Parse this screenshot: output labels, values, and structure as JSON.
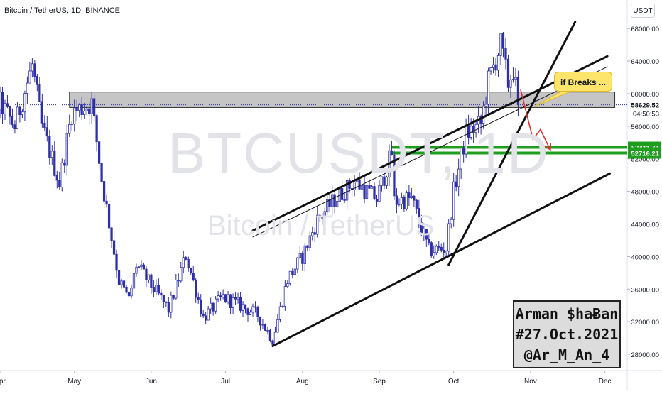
{
  "header": {
    "title": "Bitcoin / TetherUS, 1D, BINANCE",
    "currency": "USDT"
  },
  "watermark": {
    "symbol": "BTCUSDT, 1D",
    "description": "Bitcoin / TetherUS"
  },
  "colors": {
    "candle_up": "#ffffff",
    "candle_down": "#2f2fa8",
    "level_green": "#1f9d1f",
    "arrow_red": "#e0302a",
    "zone_fill": "#9e9e9e",
    "callout_fill": "#fce56a"
  },
  "signature": {
    "line1": "Arman $haɃan",
    "line2": "#27.Oct.2021",
    "line3": "@Ar_M_An_4"
  },
  "callout": {
    "text": "if Breaks ..."
  },
  "chart_data": {
    "type": "candlestick",
    "symbol": "BTCUSDT",
    "timeframe": "1D",
    "exchange": "BINANCE",
    "x_range": [
      "2021-04-01",
      "2021-12-10"
    ],
    "ylim": [
      26000,
      71500
    ],
    "y_ticks": [
      28000,
      32000,
      36000,
      40000,
      44000,
      48000,
      52000,
      56000,
      60000,
      64000,
      68000
    ],
    "y_tick_labels": [
      "28000.00",
      "32000.00",
      "36000.00",
      "40000.00",
      "44000.00",
      "48000.00",
      "52000.00",
      "56000.00",
      "60000.00",
      "64000.00",
      "68000.00"
    ],
    "x_ticks": [
      {
        "label": "Apr",
        "date": "2021-04-01"
      },
      {
        "label": "May",
        "date": "2021-05-01"
      },
      {
        "label": "Jun",
        "date": "2021-06-01"
      },
      {
        "label": "Jul",
        "date": "2021-07-01"
      },
      {
        "label": "Aug",
        "date": "2021-08-01"
      },
      {
        "label": "Sep",
        "date": "2021-09-01"
      },
      {
        "label": "Oct",
        "date": "2021-10-01"
      },
      {
        "label": "Nov",
        "date": "2021-11-01"
      },
      {
        "label": "Dec",
        "date": "2021-12-01"
      }
    ],
    "price_anchors": [
      {
        "date": "2021-04-01",
        "close": 58800
      },
      {
        "date": "2021-04-07",
        "close": 56000
      },
      {
        "date": "2021-04-14",
        "close": 63500
      },
      {
        "date": "2021-04-18",
        "close": 56000
      },
      {
        "date": "2021-04-25",
        "close": 49000
      },
      {
        "date": "2021-04-30",
        "close": 57700
      },
      {
        "date": "2021-05-08",
        "close": 58800
      },
      {
        "date": "2021-05-12",
        "close": 49500
      },
      {
        "date": "2021-05-19",
        "close": 37000
      },
      {
        "date": "2021-05-23",
        "close": 34700
      },
      {
        "date": "2021-05-26",
        "close": 39000
      },
      {
        "date": "2021-06-08",
        "close": 33500
      },
      {
        "date": "2021-06-15",
        "close": 40200
      },
      {
        "date": "2021-06-22",
        "close": 32500
      },
      {
        "date": "2021-06-30",
        "close": 35000
      },
      {
        "date": "2021-07-07",
        "close": 34000
      },
      {
        "date": "2021-07-14",
        "close": 32800
      },
      {
        "date": "2021-07-20",
        "close": 29800
      },
      {
        "date": "2021-07-26",
        "close": 37200
      },
      {
        "date": "2021-08-01",
        "close": 40000
      },
      {
        "date": "2021-08-07",
        "close": 44500
      },
      {
        "date": "2021-08-14",
        "close": 47000
      },
      {
        "date": "2021-08-22",
        "close": 49200
      },
      {
        "date": "2021-08-31",
        "close": 47100
      },
      {
        "date": "2021-09-06",
        "close": 52700
      },
      {
        "date": "2021-09-07",
        "close": 46800
      },
      {
        "date": "2021-09-14",
        "close": 47100
      },
      {
        "date": "2021-09-21",
        "close": 40700
      },
      {
        "date": "2021-09-28",
        "close": 41000
      },
      {
        "date": "2021-10-01",
        "close": 48000
      },
      {
        "date": "2021-10-06",
        "close": 55000
      },
      {
        "date": "2021-10-12",
        "close": 56300
      },
      {
        "date": "2021-10-15",
        "close": 61500
      },
      {
        "date": "2021-10-20",
        "close": 66000
      },
      {
        "date": "2021-10-23",
        "close": 61300
      },
      {
        "date": "2021-10-25",
        "close": 63000
      },
      {
        "date": "2021-10-27",
        "close": 58629.52
      }
    ],
    "resistance_zone": {
      "low": 58300,
      "high": 60200,
      "from": "2021-04-29",
      "to": "2021-12-05"
    },
    "horizontal_levels": [
      {
        "price": 53411.71,
        "label": "53411.71",
        "from": "2021-09-06"
      },
      {
        "price": 52716.21,
        "label": "52716.21",
        "from": "2021-09-06"
      }
    ],
    "current_price": {
      "price": 58629.52,
      "label": "58629.52",
      "countdown": "04:50:53"
    },
    "trendlines": [
      {
        "from": [
          "2021-07-20",
          29000
        ],
        "to": [
          "2021-12-03",
          50200
        ],
        "width": 3
      },
      {
        "from": [
          "2021-07-12",
          43200
        ],
        "to": [
          "2021-12-02",
          64600
        ],
        "width": 3
      },
      {
        "from": [
          "2021-07-12",
          42400
        ],
        "to": [
          "2021-12-02",
          63300
        ],
        "width": 1
      },
      {
        "from": [
          "2021-09-29",
          39000
        ],
        "to": [
          "2021-11-19",
          68800
        ],
        "width": 3
      }
    ],
    "projection_path": [
      [
        "2021-10-28",
        60500
      ],
      [
        "2021-11-02",
        54400
      ],
      [
        "2021-11-05",
        55600
      ],
      [
        "2021-11-09",
        53100
      ]
    ]
  }
}
